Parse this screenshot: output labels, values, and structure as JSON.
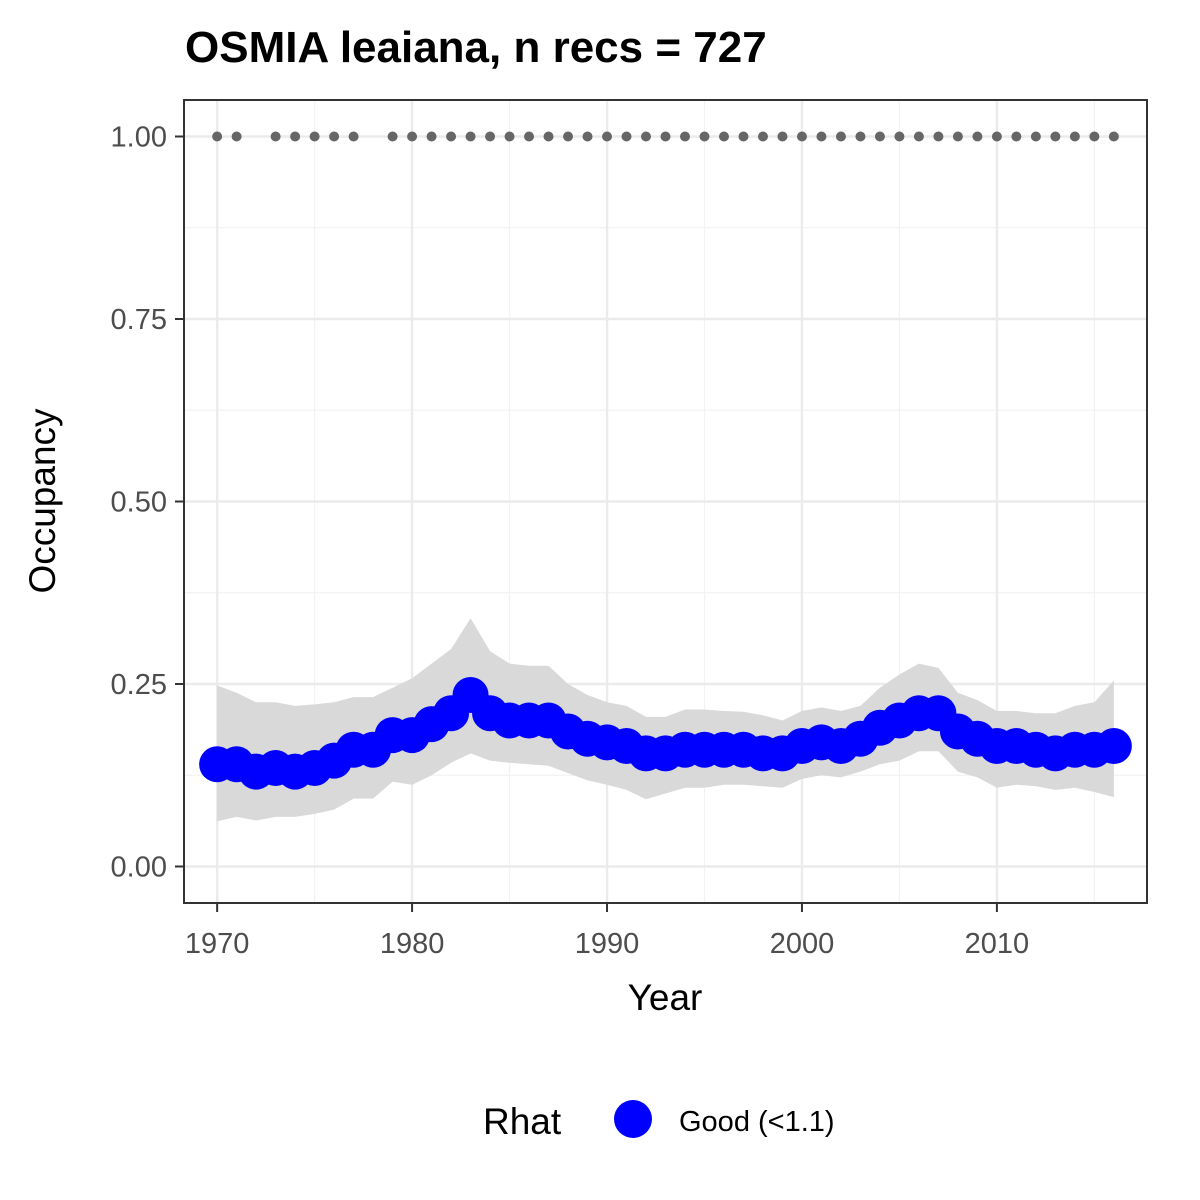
{
  "chart_data": {
    "type": "line",
    "title": "OSMIA leaiana, n recs = 727",
    "xlabel": "Year",
    "ylabel": "Occupancy",
    "xlim": [
      1968.3,
      2017.7
    ],
    "ylim": [
      -0.05,
      1.05
    ],
    "x_ticks": [
      1970,
      1980,
      1990,
      2000,
      2010
    ],
    "x_tick_labels": [
      "1970",
      "1980",
      "1990",
      "2000",
      "2010"
    ],
    "y_ticks": [
      0.0,
      0.25,
      0.5,
      0.75,
      1.0
    ],
    "y_tick_labels": [
      "0.00",
      "0.25",
      "0.50",
      "0.75",
      "1.00"
    ],
    "grid": true,
    "legend": {
      "title": "Rhat",
      "position": "bottom",
      "items": [
        {
          "label": "Good (<1.1)",
          "color": "#0000ff"
        }
      ]
    },
    "series": [
      {
        "name": "Good (<1.1)",
        "color": "#0000ff",
        "points": [
          {
            "x": 1970,
            "y": 0.14
          },
          {
            "x": 1971,
            "y": 0.14
          },
          {
            "x": 1972,
            "y": 0.13
          },
          {
            "x": 1973,
            "y": 0.135
          },
          {
            "x": 1974,
            "y": 0.13
          },
          {
            "x": 1975,
            "y": 0.135
          },
          {
            "x": 1976,
            "y": 0.145
          },
          {
            "x": 1977,
            "y": 0.16
          },
          {
            "x": 1978,
            "y": 0.16
          },
          {
            "x": 1979,
            "y": 0.18
          },
          {
            "x": 1980,
            "y": 0.18
          },
          {
            "x": 1981,
            "y": 0.195
          },
          {
            "x": 1982,
            "y": 0.21
          },
          {
            "x": 1983,
            "y": 0.235
          },
          {
            "x": 1984,
            "y": 0.21
          },
          {
            "x": 1985,
            "y": 0.2
          },
          {
            "x": 1986,
            "y": 0.2
          },
          {
            "x": 1987,
            "y": 0.2
          },
          {
            "x": 1988,
            "y": 0.185
          },
          {
            "x": 1989,
            "y": 0.175
          },
          {
            "x": 1990,
            "y": 0.17
          },
          {
            "x": 1991,
            "y": 0.165
          },
          {
            "x": 1992,
            "y": 0.155
          },
          {
            "x": 1993,
            "y": 0.155
          },
          {
            "x": 1994,
            "y": 0.16
          },
          {
            "x": 1995,
            "y": 0.16
          },
          {
            "x": 1996,
            "y": 0.16
          },
          {
            "x": 1997,
            "y": 0.16
          },
          {
            "x": 1998,
            "y": 0.155
          },
          {
            "x": 1999,
            "y": 0.155
          },
          {
            "x": 2000,
            "y": 0.165
          },
          {
            "x": 2001,
            "y": 0.17
          },
          {
            "x": 2002,
            "y": 0.165
          },
          {
            "x": 2003,
            "y": 0.175
          },
          {
            "x": 2004,
            "y": 0.19
          },
          {
            "x": 2005,
            "y": 0.2
          },
          {
            "x": 2006,
            "y": 0.21
          },
          {
            "x": 2007,
            "y": 0.21
          },
          {
            "x": 2008,
            "y": 0.185
          },
          {
            "x": 2009,
            "y": 0.175
          },
          {
            "x": 2010,
            "y": 0.165
          },
          {
            "x": 2011,
            "y": 0.165
          },
          {
            "x": 2012,
            "y": 0.16
          },
          {
            "x": 2013,
            "y": 0.155
          },
          {
            "x": 2014,
            "y": 0.16
          },
          {
            "x": 2015,
            "y": 0.16
          },
          {
            "x": 2016,
            "y": 0.165
          }
        ]
      }
    ],
    "confidence_band": {
      "color": "#d9d9d9",
      "upper": [
        0.248,
        0.238,
        0.225,
        0.225,
        0.22,
        0.222,
        0.225,
        0.232,
        0.232,
        0.245,
        0.258,
        0.278,
        0.298,
        0.34,
        0.295,
        0.278,
        0.275,
        0.275,
        0.25,
        0.235,
        0.225,
        0.22,
        0.205,
        0.205,
        0.215,
        0.215,
        0.213,
        0.212,
        0.207,
        0.2,
        0.213,
        0.218,
        0.213,
        0.22,
        0.245,
        0.263,
        0.278,
        0.272,
        0.238,
        0.228,
        0.213,
        0.213,
        0.21,
        0.21,
        0.22,
        0.225,
        0.255
      ],
      "lower": [
        0.062,
        0.068,
        0.063,
        0.068,
        0.068,
        0.072,
        0.078,
        0.093,
        0.093,
        0.116,
        0.112,
        0.125,
        0.142,
        0.155,
        0.145,
        0.142,
        0.14,
        0.138,
        0.128,
        0.118,
        0.112,
        0.105,
        0.092,
        0.1,
        0.108,
        0.108,
        0.112,
        0.112,
        0.11,
        0.108,
        0.12,
        0.125,
        0.122,
        0.13,
        0.14,
        0.145,
        0.158,
        0.158,
        0.13,
        0.122,
        0.108,
        0.112,
        0.11,
        0.105,
        0.108,
        0.102,
        0.095
      ]
    },
    "record_years": [
      1970,
      1971,
      1973,
      1974,
      1975,
      1976,
      1977,
      1979,
      1980,
      1981,
      1982,
      1983,
      1984,
      1985,
      1986,
      1987,
      1988,
      1989,
      1990,
      1991,
      1992,
      1993,
      1994,
      1995,
      1996,
      1997,
      1998,
      1999,
      2000,
      2001,
      2002,
      2003,
      2004,
      2005,
      2006,
      2007,
      2008,
      2009,
      2010,
      2011,
      2012,
      2013,
      2014,
      2015,
      2016
    ],
    "record_value": 1.0,
    "record_color": "#666666"
  }
}
